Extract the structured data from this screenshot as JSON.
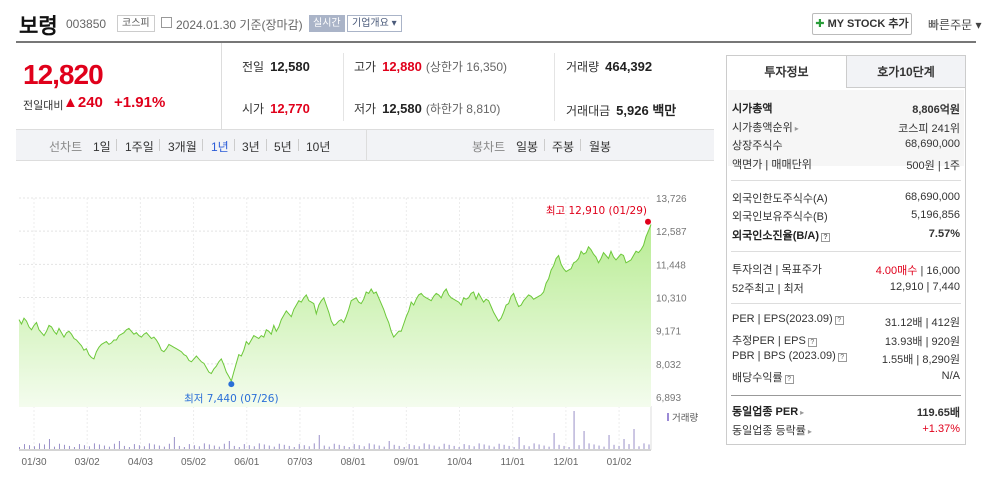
{
  "header": {
    "name": "보령",
    "code": "003850",
    "market_badge": "코스피",
    "date": "2024.01.30",
    "basis": "기준(장마감)",
    "realtime": "실시간",
    "company_summary": "기업개요 ▾",
    "my_stock": "MY STOCK 추가",
    "quick_order": "빠른주문 ▾"
  },
  "price": {
    "current": "12,820",
    "change_label": "전일대비",
    "change": "▲240",
    "change_pct": "+1.91%"
  },
  "quotes": {
    "prev_label": "전일",
    "prev": "12,580",
    "high_label": "고가",
    "high": "12,880",
    "upper_limit": "(상한가 16,350)",
    "volume_label": "거래량",
    "volume": "464,392",
    "open_label": "시가",
    "open": "12,770",
    "low_label": "저가",
    "low": "12,580",
    "lower_limit": "(하한가 8,810)",
    "amount_label": "거래대금",
    "amount": "5,926 백만"
  },
  "chart_tabs": {
    "line_label": "선차트",
    "periods": [
      "1일",
      "1주일",
      "3개월",
      "1년",
      "3년",
      "5년",
      "10년"
    ],
    "active_period": "1년",
    "candle_label": "봉차트",
    "candles": [
      "일봉",
      "주봉",
      "월봉"
    ]
  },
  "chart_data": {
    "type": "area",
    "x_ticks": [
      "01/30",
      "03/02",
      "04/03",
      "05/02",
      "06/01",
      "07/03",
      "08/01",
      "09/01",
      "10/04",
      "11/01",
      "12/01",
      "01/02"
    ],
    "y_ticks": [
      "13,726",
      "12,587",
      "11,448",
      "10,310",
      "9,171",
      "8,032",
      "6,893"
    ],
    "ylim": [
      6893,
      13726
    ],
    "max_label": "최고 12,910 (01/29)",
    "min_label": "최저 7,440 (07/26)",
    "volume_label": "거래량",
    "values": [
      9550,
      9400,
      9600,
      9500,
      9300,
      9200,
      9350,
      9450,
      9200,
      9100,
      9000,
      9150,
      9350,
      9300,
      9150,
      9050,
      9250,
      9100,
      8950,
      9100,
      9150,
      9050,
      8900,
      8850,
      8750,
      8650,
      8500,
      8550,
      8350,
      8250,
      8200,
      8450,
      8600,
      8700,
      8750,
      8800,
      8700,
      8750,
      8850,
      8850,
      9000,
      9050,
      9100,
      9200,
      9250,
      9150,
      9050,
      9100,
      9000,
      8950,
      9050,
      9100,
      9000,
      8900,
      8950,
      8850,
      8700,
      8500,
      8450,
      8550,
      8700,
      8650,
      8600,
      8550,
      8500,
      8450,
      8350,
      8300,
      8150,
      8100,
      8200,
      8300,
      8200,
      8100,
      8050,
      7900,
      7750,
      7700,
      7850,
      7950,
      8100,
      8200,
      8000,
      7750,
      7600,
      7440,
      7750,
      8050,
      8350,
      8300,
      8500,
      8800,
      8700,
      8850,
      9000,
      8950,
      8900,
      9000,
      8950,
      9200,
      9150,
      9050,
      9350,
      9150,
      9300,
      9550,
      9700,
      9850,
      9750,
      9650,
      9900,
      10050,
      10200,
      10150,
      10300,
      10400,
      10200,
      10150,
      10100,
      9750,
      10050,
      10200,
      10300,
      10050,
      9800,
      9500,
      9350,
      9400,
      9500,
      9550,
      9450,
      9650,
      9900,
      10200,
      10250,
      10300,
      10150,
      10100,
      10250,
      10500,
      10450,
      10600,
      10450,
      10500,
      10300,
      10100,
      9900,
      9650,
      9450,
      9150,
      8950,
      9050,
      9150,
      9150,
      9400,
      9650,
      9850,
      10150,
      10050,
      10250,
      10400,
      10450,
      10350,
      10300,
      10250,
      10200,
      10350,
      10450,
      10400,
      10300,
      10500,
      10600,
      10400,
      10300,
      10250,
      10200,
      10150,
      10050,
      10300,
      10250,
      10300,
      10450,
      10500,
      10250,
      10450,
      10300,
      10150,
      10250,
      10200,
      10000,
      9800,
      9650,
      9500,
      9600,
      9800,
      10050,
      10100,
      10350,
      10450,
      10200,
      10000,
      10050,
      10200,
      10300,
      10400,
      10350,
      10250,
      10300,
      10350,
      10400,
      10500,
      10800,
      10950,
      11250,
      11400,
      11650,
      11750,
      11450,
      11300,
      11200,
      11250,
      11300,
      11500,
      11550,
      11650,
      11900,
      11800,
      11850,
      12050,
      11950,
      11800,
      11700,
      11500,
      11650,
      11850,
      11750,
      11650,
      11900,
      11700,
      11600,
      11700,
      11800,
      11750,
      11500,
      11550,
      11600,
      11750,
      11900,
      11850,
      11950,
      12100,
      12400,
      12600,
      12820
    ]
  },
  "right_panel": {
    "tab_invest": "투자정보",
    "tab_hoga": "호가10단계",
    "market_cap_label": "시가총액",
    "market_cap": "8,806억원",
    "cap_rank_label": "시가총액순위",
    "cap_rank": "코스피 241위",
    "shares_label": "상장주식수",
    "shares": "68,690,000",
    "par_label": "액면가 | 매매단위",
    "par": "500원 | 1주",
    "foreign_limit_label": "외국인한도주식수(A)",
    "foreign_limit": "68,690,000",
    "foreign_hold_label": "외국인보유주식수(B)",
    "foreign_hold": "5,196,856",
    "foreign_ratio_label": "외국인소진율(B/A)",
    "foreign_ratio": "7.57%",
    "opinion_label": "투자의견 | 목표주가",
    "opinion": "4.00매수",
    "target": "| 16,000",
    "w52_label": "52주최고 | 최저",
    "w52": "12,910 | 7,440",
    "per_label": "PER | EPS(2023.09)",
    "per": "31.12배 | 412원",
    "est_per_label": "추정PER | EPS",
    "est_per": "13.93배 | 920원",
    "pbr_label": "PBR | BPS (2023.09)",
    "pbr": "1.55배 | 8,290원",
    "div_label": "배당수익률",
    "div": "N/A",
    "same_per_label": "동일업종 PER",
    "same_per": "119.65배",
    "same_rate_label": "동일업종 등락률",
    "same_rate": "+1.37%"
  }
}
